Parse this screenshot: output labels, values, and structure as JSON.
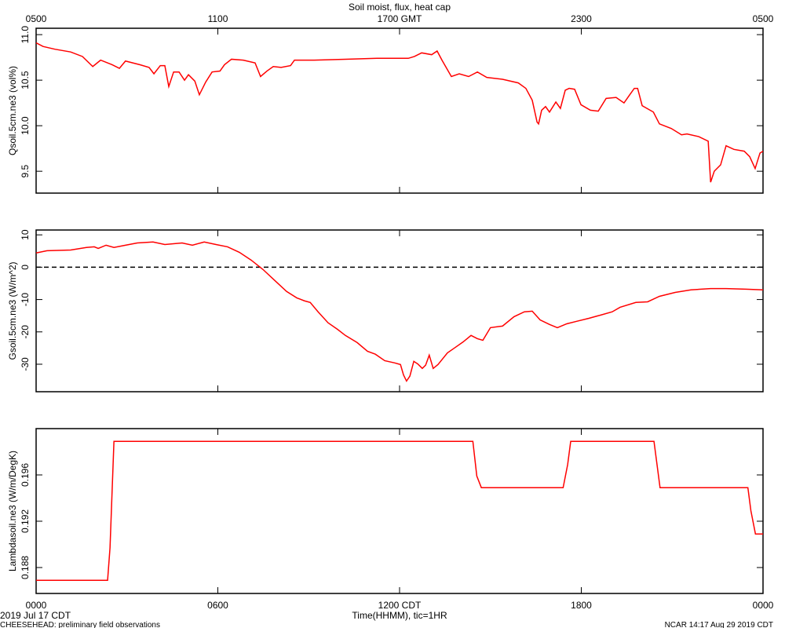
{
  "chart_data": [
    {
      "type": "line",
      "title": "Soil moist, flux, heat cap",
      "ylabel": "Qsoil.5cm.ne3 (vol%)",
      "color": "#ff0000",
      "xlim": [
        0,
        24
      ],
      "ylim": [
        9.26,
        11.07
      ],
      "yticks": [
        9.5,
        {
          "value": 10,
          "label": "10.0"
        },
        10.5,
        {
          "value": 11,
          "label": "11.0"
        }
      ],
      "x2ticks": [
        {
          "value": 0,
          "label": "0500"
        },
        {
          "value": 6,
          "label": "1100"
        },
        {
          "value": 12,
          "label": "1700 GMT"
        },
        {
          "value": 18,
          "label": "2300"
        },
        {
          "value": 24,
          "label": "0500"
        }
      ],
      "x": [
        0,
        0.23,
        0.62,
        1.14,
        1.53,
        1.87,
        2.13,
        2.51,
        2.75,
        2.95,
        3.42,
        3.73,
        3.89,
        4.1,
        4.25,
        4.38,
        4.54,
        4.72,
        4.9,
        5.03,
        5.24,
        5.39,
        5.6,
        5.81,
        6.07,
        6.22,
        6.45,
        6.84,
        7.23,
        7.41,
        7.62,
        7.83,
        8.09,
        8.4,
        8.53,
        9.18,
        10.21,
        11.25,
        12.29,
        12.49,
        12.73,
        13.06,
        13.24,
        13.4,
        13.71,
        13.97,
        14.28,
        14.57,
        14.88,
        15.4,
        15.92,
        16.17,
        16.38,
        16.54,
        16.59,
        16.69,
        16.82,
        16.95,
        17.16,
        17.31,
        17.47,
        17.6,
        17.78,
        17.99,
        18.3,
        18.56,
        18.82,
        19.15,
        19.41,
        19.6,
        19.75,
        19.86,
        20.01,
        20.38,
        20.58,
        20.97,
        21.31,
        21.49,
        21.88,
        22.19,
        22.27,
        22.39,
        22.6,
        22.78,
        23.04,
        23.38,
        23.56,
        23.74,
        23.9,
        24.0
      ],
      "values": [
        10.91,
        10.87,
        10.84,
        10.81,
        10.76,
        10.65,
        10.72,
        10.67,
        10.63,
        10.71,
        10.67,
        10.64,
        10.57,
        10.66,
        10.66,
        10.43,
        10.59,
        10.59,
        10.5,
        10.56,
        10.49,
        10.34,
        10.48,
        10.59,
        10.6,
        10.67,
        10.73,
        10.72,
        10.69,
        10.54,
        10.6,
        10.65,
        10.64,
        10.66,
        10.72,
        10.72,
        10.73,
        10.74,
        10.74,
        10.76,
        10.8,
        10.78,
        10.82,
        10.72,
        10.54,
        10.57,
        10.54,
        10.59,
        10.53,
        10.51,
        10.47,
        10.41,
        10.28,
        10.04,
        10.02,
        10.17,
        10.21,
        10.15,
        10.26,
        10.19,
        10.39,
        10.41,
        10.4,
        10.23,
        10.17,
        10.16,
        10.3,
        10.31,
        10.25,
        10.34,
        10.41,
        10.41,
        10.22,
        10.15,
        10.02,
        9.97,
        9.9,
        9.91,
        9.88,
        9.83,
        9.38,
        9.5,
        9.57,
        9.78,
        9.74,
        9.72,
        9.66,
        9.53,
        9.7,
        9.72
      ]
    },
    {
      "type": "line",
      "ylabel": "Gsoil.5cm.ne3 (W/m^2)",
      "color": "#ff0000",
      "zero_line": true,
      "xlim": [
        0,
        24
      ],
      "ylim": [
        -38.5,
        11.5
      ],
      "yticks": [
        -30,
        -20,
        -10,
        0,
        10
      ],
      "x": [
        0,
        0.36,
        1.14,
        1.66,
        1.92,
        2.05,
        2.31,
        2.57,
        2.95,
        3.34,
        3.86,
        4.25,
        4.82,
        5.16,
        5.55,
        5.94,
        6.32,
        6.71,
        7.1,
        7.49,
        7.88,
        8.27,
        8.61,
        8.86,
        9.05,
        9.31,
        9.64,
        9.95,
        10.21,
        10.6,
        10.94,
        11.2,
        11.51,
        11.84,
        12.03,
        12.13,
        12.23,
        12.34,
        12.47,
        12.6,
        12.75,
        12.86,
        12.98,
        13.11,
        13.27,
        13.58,
        13.84,
        14.1,
        14.36,
        14.57,
        14.75,
        15.0,
        15.4,
        15.78,
        16.12,
        16.38,
        16.64,
        16.95,
        17.21,
        17.52,
        17.86,
        18.25,
        18.64,
        19.02,
        19.28,
        19.8,
        20.19,
        20.58,
        21.1,
        21.62,
        22.27,
        22.78,
        23.43,
        24.0
      ],
      "values": [
        4.4,
        5.1,
        5.3,
        6.1,
        6.3,
        5.8,
        6.8,
        6.1,
        6.8,
        7.5,
        7.8,
        7.0,
        7.5,
        6.8,
        7.8,
        7.0,
        6.3,
        4.6,
        2.2,
        -0.7,
        -4.1,
        -7.5,
        -9.5,
        -10.4,
        -10.9,
        -13.8,
        -17.2,
        -19.2,
        -21.1,
        -23.3,
        -26.0,
        -26.9,
        -28.9,
        -29.6,
        -30.1,
        -33.3,
        -35.2,
        -33.7,
        -29.1,
        -29.9,
        -31.3,
        -30.3,
        -27.2,
        -31.3,
        -30.1,
        -26.5,
        -24.8,
        -23.1,
        -21.1,
        -22.1,
        -22.6,
        -18.7,
        -18.2,
        -15.3,
        -13.8,
        -13.6,
        -16.3,
        -17.7,
        -18.7,
        -17.5,
        -16.7,
        -15.8,
        -14.8,
        -13.8,
        -12.4,
        -10.9,
        -10.7,
        -9.0,
        -7.8,
        -7.0,
        -6.6,
        -6.6,
        -6.8,
        -7.0
      ]
    },
    {
      "type": "line",
      "ylabel": "Lambdasoil.ne3 (W/m/DegK)",
      "color": "#ff0000",
      "xlim": [
        0,
        24
      ],
      "ylim": [
        0.18576,
        0.2
      ],
      "yticks": [
        0.188,
        0.192,
        0.196
      ],
      "xticks": [
        {
          "value": 0,
          "label": "0000"
        },
        {
          "value": 6,
          "label": "0600"
        },
        {
          "value": 12,
          "label": "1200 CDT"
        },
        {
          "value": 18,
          "label": "1800"
        },
        {
          "value": 24,
          "label": "0000"
        }
      ],
      "xlabel": "Time(HHMM), tic=1HR",
      "x": [
        0,
        2.36,
        2.44,
        2.57,
        14.42,
        14.55,
        14.7,
        17.4,
        17.55,
        17.65,
        20.4,
        20.6,
        23.5,
        23.6,
        23.75,
        24
      ],
      "values": [
        0.1869,
        0.1869,
        0.1897,
        0.1989,
        0.1989,
        0.1959,
        0.1949,
        0.1949,
        0.1969,
        0.1989,
        0.1989,
        0.1949,
        0.1949,
        0.1929,
        0.1909,
        0.1909
      ]
    }
  ],
  "footer": {
    "date": "2019 Jul 17 CDT",
    "project": "CHEESEHEAD: preliminary field observations",
    "credit": "NCAR 14:17 Aug 29 2019 CDT"
  }
}
